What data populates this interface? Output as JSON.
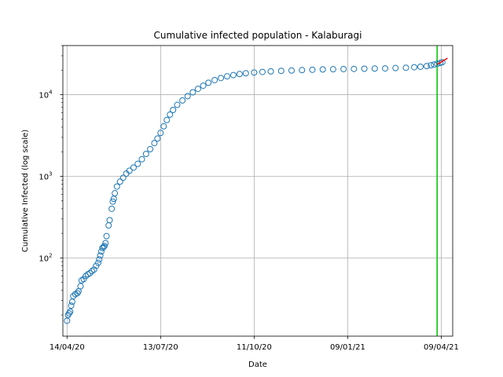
{
  "chart_data": {
    "type": "scatter",
    "title": "Cumulative infected population - Kalaburagi",
    "xlabel": "Date",
    "ylabel": "Cumulative Infected (log scale)",
    "yscale": "log",
    "grid": true,
    "x_type": "date",
    "xlim": [
      "2020-04-10",
      "2021-04-20"
    ],
    "ylim": [
      11,
      40000
    ],
    "x_ticks": [
      {
        "date": "2020-04-14",
        "label": "14/04/20"
      },
      {
        "date": "2020-07-13",
        "label": "13/07/20"
      },
      {
        "date": "2020-10-11",
        "label": "11/10/20"
      },
      {
        "date": "2021-01-09",
        "label": "09/01/21"
      },
      {
        "date": "2021-04-09",
        "label": "09/04/21"
      }
    ],
    "y_ticks": [
      {
        "value": 100,
        "base": "10",
        "exp": "2"
      },
      {
        "value": 1000,
        "base": "10",
        "exp": "3"
      },
      {
        "value": 10000,
        "base": "10",
        "exp": "4"
      }
    ],
    "series": [
      {
        "marker": "hollow-circle",
        "color": "#1f77b4",
        "points": [
          [
            "2020-04-14",
            17
          ],
          [
            "2020-04-15",
            20
          ],
          [
            "2020-04-16",
            21
          ],
          [
            "2020-04-17",
            22
          ],
          [
            "2020-04-18",
            26
          ],
          [
            "2020-04-19",
            29
          ],
          [
            "2020-04-20",
            34
          ],
          [
            "2020-04-22",
            36
          ],
          [
            "2020-04-24",
            37
          ],
          [
            "2020-04-25",
            39
          ],
          [
            "2020-04-27",
            45
          ],
          [
            "2020-04-28",
            53
          ],
          [
            "2020-04-30",
            55
          ],
          [
            "2020-05-02",
            60
          ],
          [
            "2020-05-04",
            63
          ],
          [
            "2020-05-06",
            65
          ],
          [
            "2020-05-08",
            69
          ],
          [
            "2020-05-10",
            72
          ],
          [
            "2020-05-12",
            80
          ],
          [
            "2020-05-14",
            87
          ],
          [
            "2020-05-15",
            96
          ],
          [
            "2020-05-16",
            107
          ],
          [
            "2020-05-17",
            120
          ],
          [
            "2020-05-18",
            132
          ],
          [
            "2020-05-19",
            136
          ],
          [
            "2020-05-20",
            140
          ],
          [
            "2020-05-21",
            152
          ],
          [
            "2020-05-22",
            185
          ],
          [
            "2020-05-24",
            250
          ],
          [
            "2020-05-25",
            290
          ],
          [
            "2020-05-27",
            400
          ],
          [
            "2020-05-28",
            490
          ],
          [
            "2020-05-29",
            530
          ],
          [
            "2020-05-30",
            620
          ],
          [
            "2020-06-01",
            750
          ],
          [
            "2020-06-04",
            860
          ],
          [
            "2020-06-07",
            960
          ],
          [
            "2020-06-10",
            1080
          ],
          [
            "2020-06-13",
            1170
          ],
          [
            "2020-06-17",
            1280
          ],
          [
            "2020-06-21",
            1420
          ],
          [
            "2020-06-25",
            1620
          ],
          [
            "2020-06-29",
            1880
          ],
          [
            "2020-07-03",
            2150
          ],
          [
            "2020-07-07",
            2550
          ],
          [
            "2020-07-10",
            2900
          ],
          [
            "2020-07-13",
            3400
          ],
          [
            "2020-07-16",
            4100
          ],
          [
            "2020-07-19",
            4900
          ],
          [
            "2020-07-22",
            5700
          ],
          [
            "2020-07-25",
            6500
          ],
          [
            "2020-07-29",
            7500
          ],
          [
            "2020-08-03",
            8500
          ],
          [
            "2020-08-08",
            9600
          ],
          [
            "2020-08-13",
            10700
          ],
          [
            "2020-08-18",
            11800
          ],
          [
            "2020-08-23",
            12900
          ],
          [
            "2020-08-28",
            14000
          ],
          [
            "2020-09-03",
            15100
          ],
          [
            "2020-09-09",
            16000
          ],
          [
            "2020-09-15",
            16800
          ],
          [
            "2020-09-21",
            17400
          ],
          [
            "2020-09-27",
            17900
          ],
          [
            "2020-10-03",
            18300
          ],
          [
            "2020-10-11",
            18700
          ],
          [
            "2020-10-19",
            19000
          ],
          [
            "2020-10-27",
            19300
          ],
          [
            "2020-11-06",
            19600
          ],
          [
            "2020-11-16",
            19800
          ],
          [
            "2020-11-26",
            20000
          ],
          [
            "2020-12-06",
            20200
          ],
          [
            "2020-12-16",
            20400
          ],
          [
            "2020-12-26",
            20500
          ],
          [
            "2021-01-05",
            20600
          ],
          [
            "2021-01-15",
            20700
          ],
          [
            "2021-01-25",
            20800
          ],
          [
            "2021-02-04",
            20900
          ],
          [
            "2021-02-14",
            21000
          ],
          [
            "2021-02-24",
            21200
          ],
          [
            "2021-03-06",
            21400
          ],
          [
            "2021-03-14",
            21700
          ],
          [
            "2021-03-20",
            22000
          ],
          [
            "2021-03-26",
            22400
          ],
          [
            "2021-03-30",
            22900
          ],
          [
            "2021-04-02",
            23400
          ],
          [
            "2021-04-05",
            23900
          ],
          [
            "2021-04-08",
            24500
          ],
          [
            "2021-04-10",
            25000
          ]
        ]
      }
    ],
    "fit_line": {
      "color": "#ff0000",
      "points": [
        [
          "2021-04-05",
          23500
        ],
        [
          "2021-04-15",
          28000
        ]
      ]
    },
    "vertical_marker": {
      "color": "#00c000",
      "date": "2021-04-05"
    }
  }
}
